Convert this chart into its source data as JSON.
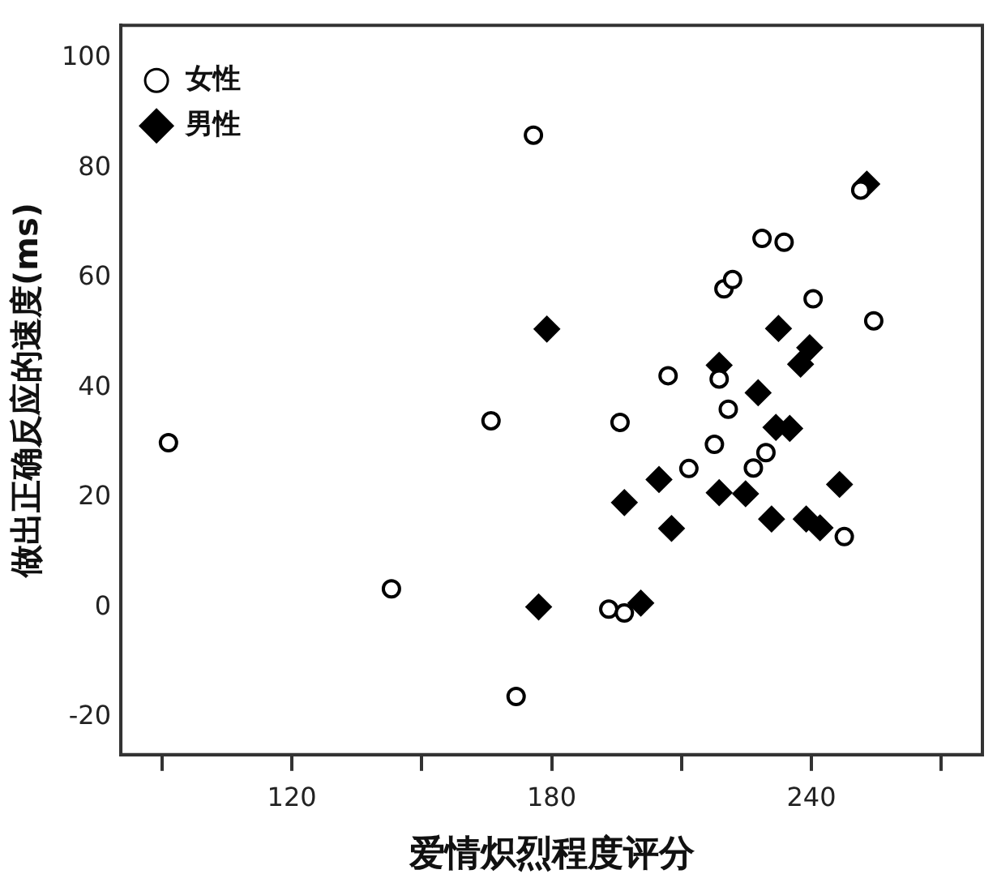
{
  "chart_data": {
    "type": "scatter",
    "xlabel": "爱情炽烈程度评分",
    "ylabel": "做出正确反应的速度(ms)",
    "xlim": [
      80.5,
      279.5
    ],
    "xticks": [
      {
        "value": 90,
        "label": null
      },
      120,
      {
        "value": 150,
        "label": null
      },
      180,
      {
        "value": 210,
        "label": null
      },
      240,
      {
        "value": 270,
        "label": null
      }
    ],
    "ylim": [
      -26.8,
      106
    ],
    "yticks": [
      -20,
      0,
      20,
      40,
      60,
      80,
      100
    ],
    "grid": false,
    "legend": "top left",
    "series": [
      {
        "name": "女性",
        "color": "#000000",
        "marker": "circle",
        "x": [
          91.5,
          143,
          166,
          175.8,
          171.8,
          193.2,
          251.4,
          228.6,
          233.7,
          219.8,
          221.8,
          240.4,
          254.4,
          206.9,
          218.7,
          220.8,
          195.8,
          217.6,
          229.5,
          226.6,
          211.7,
          247.6,
          196.8
        ],
        "values": [
          30,
          3.4,
          34,
          86,
          -16.2,
          -0.3,
          76,
          67.2,
          66.5,
          58,
          59.7,
          56.2,
          52.2,
          42.2,
          41.6,
          36.1,
          33.7,
          29.7,
          28.2,
          25.4,
          25.3,
          12.9,
          -1
        ]
      },
      {
        "name": "男性",
        "color": "#000000",
        "marker": "diamond",
        "x": [
          178.9,
          177,
          252.8,
          232.4,
          239.6,
          237.5,
          218.7,
          227.7,
          231.8,
          235,
          204.8,
          246.5,
          196.8,
          218.7,
          224.8,
          207.7,
          230.8,
          238.8,
          242,
          200.6
        ],
        "values": [
          50.7,
          0.1,
          77.1,
          50.8,
          47.3,
          44.3,
          44.1,
          39.1,
          32.8,
          32.6,
          23.3,
          22.4,
          19.1,
          20.9,
          20.7,
          14.4,
          16.1,
          16.1,
          14.5,
          0.8
        ]
      }
    ]
  }
}
